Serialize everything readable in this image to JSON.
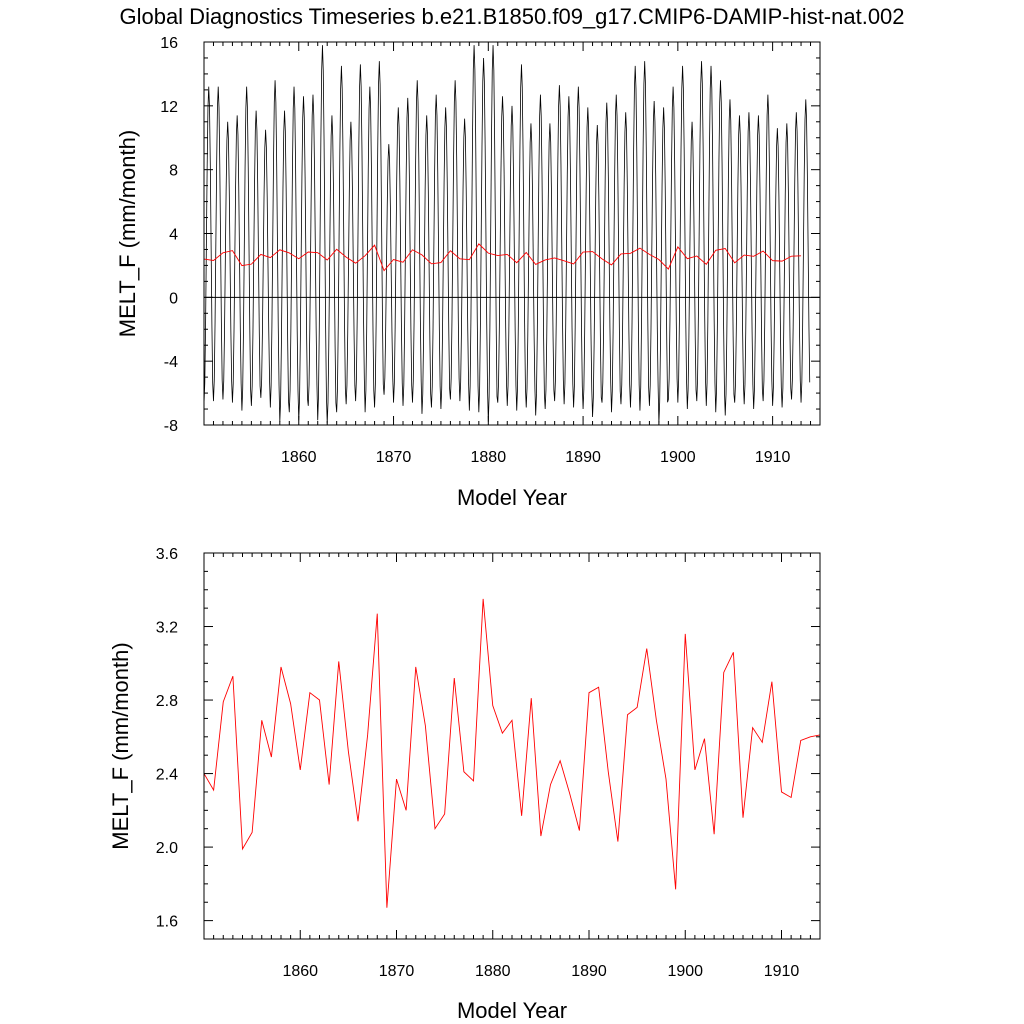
{
  "title": "Global Diagnostics Timeseries b.e21.B1850.f09_g17.CMIP6-DAMIP-hist-nat.002",
  "colors": {
    "monthly": "#000000",
    "annual": "#ff0000",
    "zero_line": "#000000"
  },
  "chart_data": [
    {
      "type": "line",
      "xlabel": "Model Year",
      "ylabel": "MELT_F (mm/month)",
      "xlim": [
        1850,
        1915
      ],
      "ylim": [
        -8,
        16
      ],
      "x_ticks": [
        1860,
        1870,
        1880,
        1890,
        1900,
        1910
      ],
      "y_ticks": [
        -8,
        -4,
        0,
        4,
        8,
        12,
        16
      ],
      "zero_line": true,
      "series": [
        {
          "style": "monthly",
          "start_year": 1850,
          "months_per_year": 12,
          "annual_max": [
            13.2,
            13.2,
            11.0,
            11.4,
            13.2,
            11.7,
            10.5,
            13.6,
            11.7,
            13.2,
            12.6,
            12.7,
            15.8,
            11.4,
            14.5,
            11.0,
            14.6,
            13.2,
            14.8,
            9.6,
            11.9,
            12.5,
            13.6,
            11.4,
            12.7,
            11.9,
            13.6,
            11.2,
            15.8,
            15.0,
            15.8,
            12.6,
            12.0,
            14.6,
            10.9,
            12.7,
            10.9,
            13.3,
            12.6,
            13.2,
            11.9,
            10.8,
            12.2,
            12.7,
            11.6,
            14.5,
            14.8,
            12.3,
            11.9,
            13.2,
            14.5,
            11.0,
            14.8,
            14.5,
            13.6,
            12.4,
            11.4,
            11.6,
            11.4,
            12.7,
            10.6,
            10.9,
            11.6,
            12.4
          ],
          "annual_min": [
            -6.7,
            -6.5,
            -6.4,
            -6.6,
            -7.1,
            -6.8,
            -6.3,
            -6.9,
            -7.8,
            -7.2,
            -7.7,
            -6.8,
            -7.7,
            -7.9,
            -7.2,
            -6.7,
            -6.5,
            -7.2,
            -6.9,
            -6.1,
            -6.6,
            -6.8,
            -6.6,
            -7.3,
            -6.9,
            -7.0,
            -6.4,
            -6.5,
            -7.1,
            -7.2,
            -7.8,
            -6.6,
            -6.8,
            -7.1,
            -6.9,
            -7.4,
            -7.0,
            -6.5,
            -6.7,
            -6.9,
            -7.0,
            -7.5,
            -6.6,
            -7.2,
            -6.7,
            -6.9,
            -7.1,
            -6.8,
            -7.9,
            -6.4,
            -6.6,
            -7.0,
            -6.5,
            -6.8,
            -7.2,
            -7.4,
            -6.6,
            -6.7,
            -7.0,
            -6.5,
            -6.8,
            -6.9,
            -6.4,
            -6.6
          ]
        },
        {
          "style": "annual",
          "x": [
            1850,
            1851,
            1852,
            1853,
            1854,
            1855,
            1856,
            1857,
            1858,
            1859,
            1860,
            1861,
            1862,
            1863,
            1864,
            1865,
            1866,
            1867,
            1868,
            1869,
            1870,
            1871,
            1872,
            1873,
            1874,
            1875,
            1876,
            1877,
            1878,
            1879,
            1880,
            1881,
            1882,
            1883,
            1884,
            1885,
            1886,
            1887,
            1888,
            1889,
            1890,
            1891,
            1892,
            1893,
            1894,
            1895,
            1896,
            1897,
            1898,
            1899,
            1900,
            1901,
            1902,
            1903,
            1904,
            1905,
            1906,
            1907,
            1908,
            1909,
            1910,
            1911,
            1912,
            1913
          ],
          "values": [
            2.4,
            2.31,
            2.79,
            2.93,
            1.99,
            2.08,
            2.69,
            2.49,
            2.98,
            2.78,
            2.42,
            2.84,
            2.8,
            2.34,
            3.01,
            2.52,
            2.14,
            2.61,
            3.27,
            1.67,
            2.37,
            2.2,
            2.98,
            2.66,
            2.1,
            2.18,
            2.92,
            2.41,
            2.36,
            3.35,
            2.77,
            2.62,
            2.69,
            2.17,
            2.81,
            2.06,
            2.34,
            2.47,
            2.29,
            2.09,
            2.84,
            2.87,
            2.41,
            2.03,
            2.72,
            2.76,
            3.08,
            2.69,
            2.37,
            1.77,
            3.16,
            2.42,
            2.59,
            2.07,
            2.95,
            3.06,
            2.16,
            2.65,
            2.57,
            2.9,
            2.3,
            2.27,
            2.58,
            2.6
          ]
        }
      ]
    },
    {
      "type": "line",
      "xlabel": "Model Year",
      "ylabel": "MELT_F (mm/month)",
      "xlim": [
        1850,
        1914
      ],
      "ylim": [
        1.5,
        3.6
      ],
      "x_ticks": [
        1860,
        1870,
        1880,
        1890,
        1900,
        1910
      ],
      "y_ticks": [
        1.6,
        2.0,
        2.4,
        2.8,
        3.2,
        3.6
      ],
      "y_tick_labels": [
        "1.6",
        "2.0",
        "2.4",
        "2.8",
        "3.2",
        "3.6"
      ],
      "series": [
        {
          "style": "annual",
          "x": [
            1850,
            1851,
            1852,
            1853,
            1854,
            1855,
            1856,
            1857,
            1858,
            1859,
            1860,
            1861,
            1862,
            1863,
            1864,
            1865,
            1866,
            1867,
            1868,
            1869,
            1870,
            1871,
            1872,
            1873,
            1874,
            1875,
            1876,
            1877,
            1878,
            1879,
            1880,
            1881,
            1882,
            1883,
            1884,
            1885,
            1886,
            1887,
            1888,
            1889,
            1890,
            1891,
            1892,
            1893,
            1894,
            1895,
            1896,
            1897,
            1898,
            1899,
            1900,
            1901,
            1902,
            1903,
            1904,
            1905,
            1906,
            1907,
            1908,
            1909,
            1910,
            1911,
            1912,
            1913,
            1914
          ],
          "values": [
            2.4,
            2.31,
            2.79,
            2.93,
            1.99,
            2.08,
            2.69,
            2.49,
            2.98,
            2.78,
            2.42,
            2.84,
            2.8,
            2.34,
            3.01,
            2.52,
            2.14,
            2.61,
            3.27,
            1.67,
            2.37,
            2.2,
            2.98,
            2.66,
            2.1,
            2.18,
            2.92,
            2.41,
            2.36,
            3.35,
            2.77,
            2.62,
            2.69,
            2.17,
            2.81,
            2.06,
            2.34,
            2.47,
            2.29,
            2.09,
            2.84,
            2.87,
            2.41,
            2.03,
            2.72,
            2.76,
            3.08,
            2.69,
            2.37,
            1.77,
            3.16,
            2.42,
            2.59,
            2.07,
            2.95,
            3.06,
            2.16,
            2.65,
            2.57,
            2.9,
            2.3,
            2.27,
            2.58,
            2.6,
            2.61
          ]
        }
      ]
    }
  ]
}
